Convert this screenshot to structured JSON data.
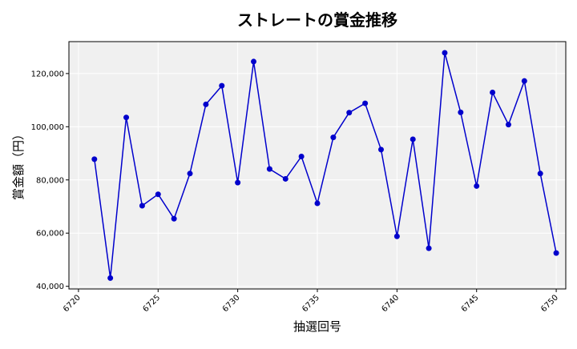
{
  "chart_data": {
    "type": "line",
    "title": "ストレートの賞金推移",
    "xlabel": "抽選回号",
    "ylabel": "賞金額（円）",
    "xlim": [
      6719.4,
      6750.6
    ],
    "ylim": [
      39000,
      132000
    ],
    "x_ticks": [
      6720,
      6725,
      6730,
      6735,
      6740,
      6745,
      6750
    ],
    "x_tick_labels": [
      "6720",
      "6725",
      "6730",
      "6735",
      "6740",
      "6745",
      "6750"
    ],
    "y_ticks": [
      40000,
      60000,
      80000,
      100000,
      120000
    ],
    "y_tick_labels": [
      "40,000",
      "60,000",
      "80,000",
      "100,000",
      "120,000"
    ],
    "grid": true,
    "line_color": "#0000cc",
    "background_color": "#f0f0f0",
    "series": [
      {
        "x": [
          6721,
          6722,
          6723,
          6724,
          6725,
          6726,
          6727,
          6728,
          6729,
          6730,
          6731,
          6732,
          6733,
          6734,
          6735,
          6736,
          6737,
          6738,
          6739,
          6740,
          6741,
          6742,
          6743,
          6744,
          6745,
          6746,
          6747,
          6748,
          6749,
          6750
        ],
        "values": [
          87800,
          43100,
          103500,
          70300,
          74600,
          65400,
          82400,
          108400,
          115400,
          79000,
          124500,
          84100,
          80400,
          88800,
          71200,
          96000,
          105300,
          108800,
          91400,
          58800,
          95300,
          54300,
          127800,
          105400,
          77700,
          112900,
          100800,
          117200,
          82400,
          52500
        ]
      }
    ]
  }
}
